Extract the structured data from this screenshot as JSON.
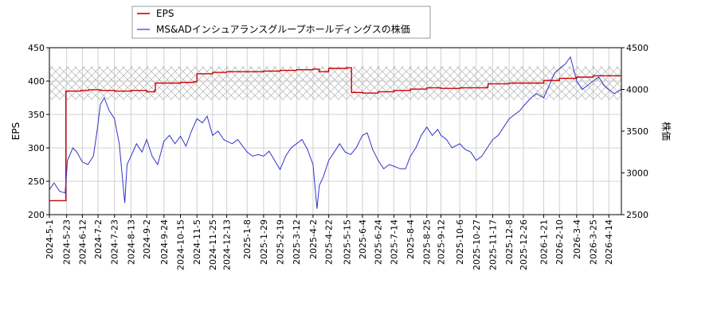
{
  "chart_data": {
    "type": "line",
    "legend": {
      "placement": "top-left",
      "entries": [
        {
          "name": "EPS",
          "color": "#cc0000"
        },
        {
          "name": "MS&ADインシュアランスグループホールディングスの株価",
          "color": "#3333cc"
        }
      ]
    },
    "left_axis": {
      "label": "EPS",
      "ylim": [
        200,
        450
      ],
      "ticks": [
        "200",
        "250",
        "300",
        "350",
        "400",
        "450"
      ]
    },
    "right_axis": {
      "label": "株価",
      "ylim": [
        2500,
        4500
      ],
      "ticks": [
        "2500",
        "3000",
        "3500",
        "4000",
        "4500"
      ]
    },
    "x_axis": {
      "range": [
        "2024-05-01",
        "2026-04-30"
      ],
      "tick_labels": [
        "2024-5-1",
        "2024-5-23",
        "2024-6-12",
        "2024-7-2",
        "2024-7-23",
        "2024-8-13",
        "2024-9-2",
        "2024-9-24",
        "2024-10-15",
        "2024-11-5",
        "2024-11-25",
        "2024-12-13",
        "2025-1-8",
        "2025-1-29",
        "2025-2-19",
        "2025-3-12",
        "2025-4-2",
        "2025-4-22",
        "2025-5-15",
        "2025-6-4",
        "2025-6-24",
        "2025-7-14",
        "2025-8-4",
        "2025-8-25",
        "2025-9-12",
        "2025-10-6",
        "2025-10-27",
        "2025-11-17",
        "2025-12-8",
        "2025-12-26",
        "2026-1-21",
        "2026-2-10",
        "2026-3-4",
        "2026-3-25",
        "2026-4-14"
      ]
    },
    "grid": true,
    "forecast_band": {
      "left_axis_range": [
        372,
        422
      ],
      "pattern": "cross-hatch",
      "color": "#b0b0b0"
    },
    "series": [
      {
        "name": "EPS",
        "axis": "left",
        "color": "#cc0000",
        "points": [
          [
            "2024-05-01",
            221
          ],
          [
            "2024-05-21",
            221
          ],
          [
            "2024-05-22",
            385
          ],
          [
            "2024-06-10",
            386
          ],
          [
            "2024-06-20",
            387
          ],
          [
            "2024-07-05",
            386
          ],
          [
            "2024-07-23",
            385
          ],
          [
            "2024-08-13",
            386
          ],
          [
            "2024-09-02",
            384
          ],
          [
            "2024-09-12",
            386
          ],
          [
            "2024-09-13",
            397
          ],
          [
            "2024-10-15",
            398
          ],
          [
            "2024-11-01",
            399
          ],
          [
            "2024-11-05",
            411
          ],
          [
            "2024-11-25",
            413
          ],
          [
            "2024-12-13",
            414
          ],
          [
            "2025-01-08",
            414
          ],
          [
            "2025-01-29",
            415
          ],
          [
            "2025-02-19",
            416
          ],
          [
            "2025-03-12",
            417
          ],
          [
            "2025-04-02",
            418
          ],
          [
            "2025-04-10",
            414
          ],
          [
            "2025-04-22",
            419
          ],
          [
            "2025-05-15",
            420
          ],
          [
            "2025-05-20",
            420
          ],
          [
            "2025-05-21",
            383
          ],
          [
            "2025-06-04",
            382
          ],
          [
            "2025-06-24",
            384
          ],
          [
            "2025-07-14",
            386
          ],
          [
            "2025-08-04",
            388
          ],
          [
            "2025-08-25",
            390
          ],
          [
            "2025-09-12",
            389
          ],
          [
            "2025-10-06",
            390
          ],
          [
            "2025-10-27",
            390
          ],
          [
            "2025-11-10",
            391
          ],
          [
            "2025-11-11",
            396
          ],
          [
            "2025-12-08",
            397
          ],
          [
            "2025-12-26",
            397
          ],
          [
            "2026-01-21",
            401
          ],
          [
            "2026-02-10",
            404
          ],
          [
            "2026-03-04",
            406
          ],
          [
            "2026-03-25",
            408
          ],
          [
            "2026-04-14",
            408
          ],
          [
            "2026-04-30",
            407
          ]
        ]
      },
      {
        "name": "MS&ADインシュアランスグループホールディングスの株価",
        "axis": "right",
        "color": "#3333cc",
        "points": [
          [
            "2024-05-01",
            2800
          ],
          [
            "2024-05-07",
            2880
          ],
          [
            "2024-05-14",
            2780
          ],
          [
            "2024-05-21",
            2760
          ],
          [
            "2024-05-24",
            3150
          ],
          [
            "2024-05-31",
            3300
          ],
          [
            "2024-06-05",
            3250
          ],
          [
            "2024-06-12",
            3130
          ],
          [
            "2024-06-19",
            3100
          ],
          [
            "2024-06-26",
            3200
          ],
          [
            "2024-07-01",
            3520
          ],
          [
            "2024-07-05",
            3820
          ],
          [
            "2024-07-10",
            3900
          ],
          [
            "2024-07-16",
            3750
          ],
          [
            "2024-07-23",
            3650
          ],
          [
            "2024-07-29",
            3350
          ],
          [
            "2024-08-05",
            2640
          ],
          [
            "2024-08-08",
            3100
          ],
          [
            "2024-08-13",
            3200
          ],
          [
            "2024-08-20",
            3350
          ],
          [
            "2024-08-27",
            3250
          ],
          [
            "2024-09-02",
            3400
          ],
          [
            "2024-09-09",
            3200
          ],
          [
            "2024-09-16",
            3100
          ],
          [
            "2024-09-24",
            3380
          ],
          [
            "2024-10-01",
            3450
          ],
          [
            "2024-10-08",
            3350
          ],
          [
            "2024-10-15",
            3440
          ],
          [
            "2024-10-22",
            3320
          ],
          [
            "2024-10-29",
            3500
          ],
          [
            "2024-11-05",
            3650
          ],
          [
            "2024-11-12",
            3600
          ],
          [
            "2024-11-18",
            3680
          ],
          [
            "2024-11-25",
            3450
          ],
          [
            "2024-12-02",
            3500
          ],
          [
            "2024-12-09",
            3400
          ],
          [
            "2024-12-13",
            3380
          ],
          [
            "2024-12-20",
            3350
          ],
          [
            "2024-12-27",
            3400
          ],
          [
            "2025-01-08",
            3250
          ],
          [
            "2025-01-15",
            3200
          ],
          [
            "2025-01-22",
            3220
          ],
          [
            "2025-01-29",
            3200
          ],
          [
            "2025-02-05",
            3260
          ],
          [
            "2025-02-12",
            3150
          ],
          [
            "2025-02-19",
            3040
          ],
          [
            "2025-02-26",
            3200
          ],
          [
            "2025-03-05",
            3300
          ],
          [
            "2025-03-12",
            3350
          ],
          [
            "2025-03-19",
            3400
          ],
          [
            "2025-03-26",
            3280
          ],
          [
            "2025-04-02",
            3100
          ],
          [
            "2025-04-07",
            2570
          ],
          [
            "2025-04-10",
            2850
          ],
          [
            "2025-04-15",
            2950
          ],
          [
            "2025-04-22",
            3150
          ],
          [
            "2025-04-29",
            3250
          ],
          [
            "2025-05-06",
            3350
          ],
          [
            "2025-05-13",
            3250
          ],
          [
            "2025-05-20",
            3220
          ],
          [
            "2025-05-27",
            3300
          ],
          [
            "2025-06-04",
            3450
          ],
          [
            "2025-06-10",
            3480
          ],
          [
            "2025-06-17",
            3280
          ],
          [
            "2025-06-24",
            3150
          ],
          [
            "2025-07-01",
            3050
          ],
          [
            "2025-07-08",
            3100
          ],
          [
            "2025-07-14",
            3080
          ],
          [
            "2025-07-22",
            3050
          ],
          [
            "2025-07-29",
            3050
          ],
          [
            "2025-08-04",
            3200
          ],
          [
            "2025-08-11",
            3300
          ],
          [
            "2025-08-18",
            3450
          ],
          [
            "2025-08-25",
            3550
          ],
          [
            "2025-09-01",
            3450
          ],
          [
            "2025-09-08",
            3520
          ],
          [
            "2025-09-12",
            3450
          ],
          [
            "2025-09-19",
            3400
          ],
          [
            "2025-09-26",
            3300
          ],
          [
            "2025-10-06",
            3350
          ],
          [
            "2025-10-13",
            3280
          ],
          [
            "2025-10-20",
            3250
          ],
          [
            "2025-10-27",
            3150
          ],
          [
            "2025-11-03",
            3200
          ],
          [
            "2025-11-10",
            3300
          ],
          [
            "2025-11-17",
            3400
          ],
          [
            "2025-11-24",
            3450
          ],
          [
            "2025-12-01",
            3550
          ],
          [
            "2025-12-08",
            3650
          ],
          [
            "2025-12-15",
            3700
          ],
          [
            "2025-12-22",
            3750
          ],
          [
            "2025-12-26",
            3800
          ],
          [
            "2026-01-05",
            3900
          ],
          [
            "2026-01-12",
            3950
          ],
          [
            "2026-01-21",
            3900
          ],
          [
            "2026-01-28",
            4050
          ],
          [
            "2026-02-04",
            4200
          ],
          [
            "2026-02-10",
            4250
          ],
          [
            "2026-02-17",
            4300
          ],
          [
            "2026-02-24",
            4390
          ],
          [
            "2026-03-04",
            4100
          ],
          [
            "2026-03-11",
            4000
          ],
          [
            "2026-03-18",
            4050
          ],
          [
            "2026-03-25",
            4100
          ],
          [
            "2026-04-01",
            4150
          ],
          [
            "2026-04-08",
            4050
          ],
          [
            "2026-04-14",
            4000
          ],
          [
            "2026-04-21",
            3950
          ],
          [
            "2026-04-30",
            4000
          ]
        ]
      }
    ]
  }
}
